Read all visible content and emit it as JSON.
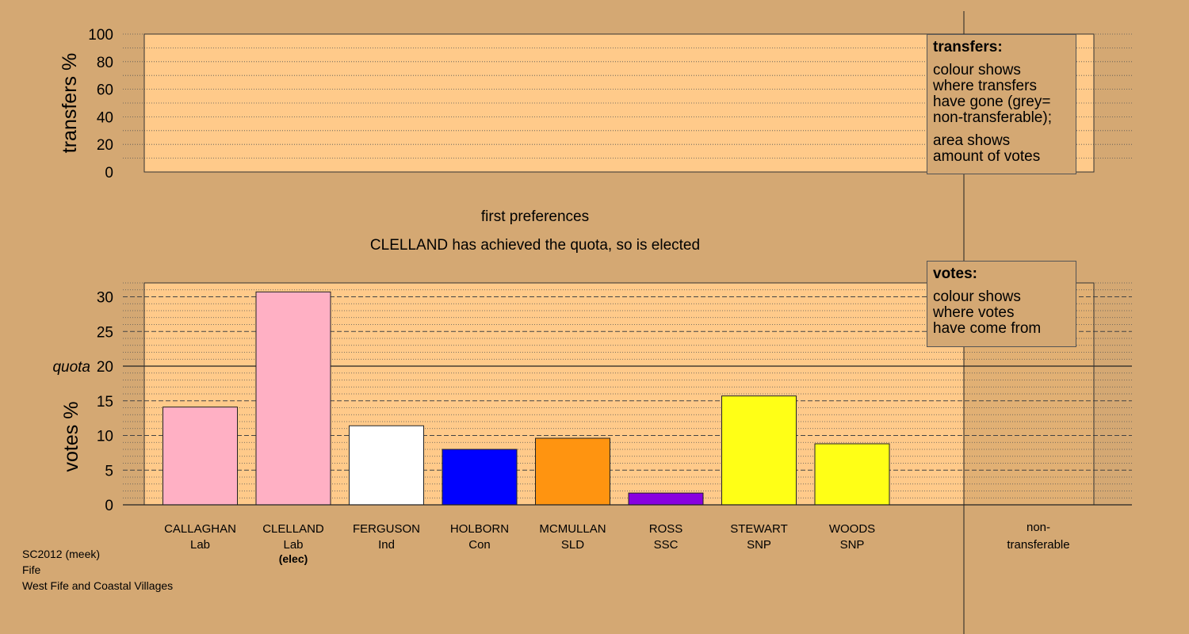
{
  "chart_data": [
    {
      "type": "bar",
      "panel": "transfers",
      "ylabel": "transfers %",
      "ylim": [
        0,
        100
      ],
      "yticks": [
        0,
        20,
        40,
        60,
        80,
        100
      ],
      "categories": [],
      "values": []
    },
    {
      "type": "bar",
      "panel": "votes",
      "title": "first preferences",
      "subtitle": "CLELLAND has achieved the quota, so is elected",
      "ylabel": "votes %",
      "ylim": [
        0,
        32
      ],
      "yticks": [
        0,
        5,
        10,
        15,
        20,
        25,
        30
      ],
      "quota": 20,
      "quota_label": "quota",
      "categories": [
        "CALLAGHAN",
        "CLELLAND",
        "FERGUSON",
        "HOLBORN",
        "MCMULLAN",
        "ROSS",
        "STEWART",
        "WOODS"
      ],
      "parties": [
        "Lab",
        "Lab",
        "Ind",
        "Con",
        "SLD",
        "SSC",
        "SNP",
        "SNP"
      ],
      "notes": [
        "",
        "(elec)",
        "",
        "",
        "",
        "",
        "",
        ""
      ],
      "values": [
        14.1,
        30.7,
        11.4,
        8.0,
        9.6,
        1.7,
        15.7,
        8.8
      ],
      "colors": [
        "#ffb0c4",
        "#ffb0c4",
        "#ffffff",
        "#0000ff",
        "#ff9410",
        "#8800e0",
        "#ffff16",
        "#ffff16"
      ],
      "nontransferable_label": [
        "non-",
        "transferable"
      ],
      "nontransferable_value": 0
    }
  ],
  "legends": {
    "transfers": {
      "title": "transfers:",
      "lines": [
        "colour shows",
        "where transfers",
        "have gone (grey=",
        "non-transferable);"
      ],
      "lines2": [
        "area shows",
        "amount of votes"
      ]
    },
    "votes": {
      "title": "votes:",
      "lines": [
        "colour shows",
        "where votes",
        "have come from"
      ]
    }
  },
  "footer": {
    "line1": "SC2012 (meek)",
    "line2": "Fife",
    "line3": "West Fife and Coastal Villages"
  },
  "colors": {
    "background": "#d4a873",
    "plot_area": "#ffca8a"
  }
}
